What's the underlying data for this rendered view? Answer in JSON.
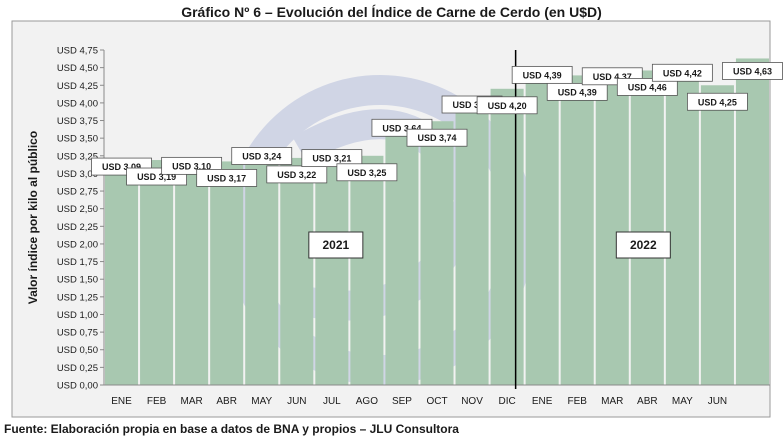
{
  "chart_data": {
    "type": "bar",
    "title": "Gráfico Nº 6 – Evolución del Índice de Carne de Cerdo (en U$D)",
    "ylabel": "Valor índice por kilo al público",
    "xlabel": "",
    "ylim": [
      0,
      4.75
    ],
    "ytick_step": 0.25,
    "yticks": [
      "USD 0,00",
      "USD 0,25",
      "USD 0,50",
      "USD 0,75",
      "USD 1,00",
      "USD 1,25",
      "USD 1,50",
      "USD 1,75",
      "USD 2,00",
      "USD 2,25",
      "USD 2,50",
      "USD 2,75",
      "USD 3,00",
      "USD 3,25",
      "USD 3,50",
      "USD 3,75",
      "USD 4,00",
      "USD 4,25",
      "USD 4,50",
      "USD 4,75"
    ],
    "categories": [
      "ENE",
      "FEB",
      "MAR",
      "ABR",
      "MAY",
      "JUN",
      "JUL",
      "AGO",
      "SEP",
      "OCT",
      "NOV",
      "DIC",
      "ENE",
      "FEB",
      "MAR",
      "ABR",
      "MAY",
      "JUN",
      ""
    ],
    "values": [
      3.09,
      3.19,
      3.1,
      3.17,
      3.24,
      3.22,
      3.21,
      3.25,
      3.64,
      3.74,
      3.97,
      4.2,
      4.39,
      4.39,
      4.37,
      4.46,
      4.42,
      4.25,
      4.63
    ],
    "data_labels": [
      "USD 3,09",
      "USD 3,19",
      "USD 3,10",
      "USD 3,17",
      "USD 3,24",
      "USD 3,22",
      "USD 3,21",
      "USD 3,25",
      "USD 3,64",
      "USD 3,74",
      "USD 3,97",
      "USD 4,20",
      "USD 4,39",
      "USD 4,39",
      "USD 4,37",
      "USD 4,46",
      "USD 4,42",
      "USD 4,25",
      "USD 4,63"
    ],
    "year_labels": [
      "2021",
      "2022"
    ],
    "bar_color": "#a8c8b0",
    "grid": false,
    "legend": "none"
  },
  "source": "Fuente: Elaboración propia en base a datos de BNA y propios – JLU Consultora"
}
